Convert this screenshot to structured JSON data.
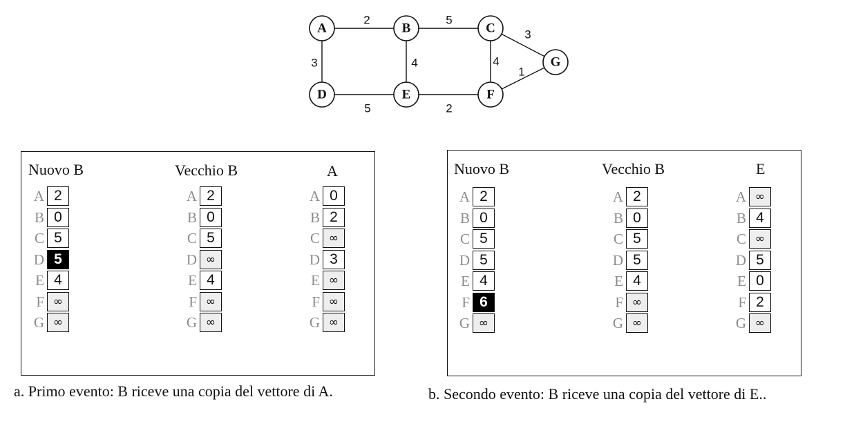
{
  "graph": {
    "nodes": [
      "A",
      "B",
      "C",
      "D",
      "E",
      "F",
      "G"
    ],
    "edges": [
      {
        "from": "A",
        "to": "B",
        "weight": "2"
      },
      {
        "from": "B",
        "to": "C",
        "weight": "5"
      },
      {
        "from": "C",
        "to": "G",
        "weight": "3"
      },
      {
        "from": "A",
        "to": "D",
        "weight": "3"
      },
      {
        "from": "B",
        "to": "E",
        "weight": "4"
      },
      {
        "from": "C",
        "to": "F",
        "weight": "4"
      },
      {
        "from": "F",
        "to": "G",
        "weight": "1"
      },
      {
        "from": "D",
        "to": "E",
        "weight": "5"
      },
      {
        "from": "E",
        "to": "F",
        "weight": "2"
      }
    ]
  },
  "panels": [
    {
      "caption": "a. Primo evento: B riceve una copia del vettore di A.",
      "vectors": [
        {
          "title": "Nuovo B",
          "rows": [
            {
              "label": "A",
              "value": "2"
            },
            {
              "label": "B",
              "value": "0"
            },
            {
              "label": "C",
              "value": "5"
            },
            {
              "label": "D",
              "value": "5",
              "highlight": true
            },
            {
              "label": "E",
              "value": "4"
            },
            {
              "label": "F",
              "value": "∞"
            },
            {
              "label": "G",
              "value": "∞"
            }
          ]
        },
        {
          "title": "Vecchio B",
          "rows": [
            {
              "label": "A",
              "value": "2"
            },
            {
              "label": "B",
              "value": "0"
            },
            {
              "label": "C",
              "value": "5"
            },
            {
              "label": "D",
              "value": "∞"
            },
            {
              "label": "E",
              "value": "4"
            },
            {
              "label": "F",
              "value": "∞"
            },
            {
              "label": "G",
              "value": "∞"
            }
          ]
        },
        {
          "title": "A",
          "rows": [
            {
              "label": "A",
              "value": "0"
            },
            {
              "label": "B",
              "value": "2"
            },
            {
              "label": "C",
              "value": "∞"
            },
            {
              "label": "D",
              "value": "3"
            },
            {
              "label": "E",
              "value": "∞"
            },
            {
              "label": "F",
              "value": "∞"
            },
            {
              "label": "G",
              "value": "∞"
            }
          ]
        }
      ]
    },
    {
      "caption": "b. Secondo evento: B riceve una copia del vettore di E..",
      "vectors": [
        {
          "title": "Nuovo B",
          "rows": [
            {
              "label": "A",
              "value": "2"
            },
            {
              "label": "B",
              "value": "0"
            },
            {
              "label": "C",
              "value": "5"
            },
            {
              "label": "D",
              "value": "5"
            },
            {
              "label": "E",
              "value": "4"
            },
            {
              "label": "F",
              "value": "6",
              "highlight": true
            },
            {
              "label": "G",
              "value": "∞"
            }
          ]
        },
        {
          "title": "Vecchio B",
          "rows": [
            {
              "label": "A",
              "value": "2"
            },
            {
              "label": "B",
              "value": "0"
            },
            {
              "label": "C",
              "value": "5"
            },
            {
              "label": "D",
              "value": "5"
            },
            {
              "label": "E",
              "value": "4"
            },
            {
              "label": "F",
              "value": "∞"
            },
            {
              "label": "G",
              "value": "∞"
            }
          ]
        },
        {
          "title": "E",
          "rows": [
            {
              "label": "A",
              "value": "∞"
            },
            {
              "label": "B",
              "value": "4"
            },
            {
              "label": "C",
              "value": "∞"
            },
            {
              "label": "D",
              "value": "5"
            },
            {
              "label": "E",
              "value": "0"
            },
            {
              "label": "F",
              "value": "2"
            },
            {
              "label": "G",
              "value": "∞"
            }
          ]
        }
      ]
    }
  ]
}
